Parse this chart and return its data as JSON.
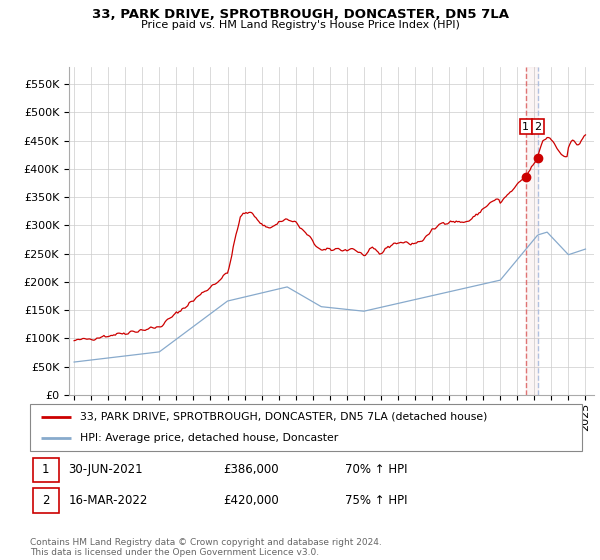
{
  "title": "33, PARK DRIVE, SPROTBROUGH, DONCASTER, DN5 7LA",
  "subtitle": "Price paid vs. HM Land Registry's House Price Index (HPI)",
  "ylabel_ticks": [
    "£0",
    "£50K",
    "£100K",
    "£150K",
    "£200K",
    "£250K",
    "£300K",
    "£350K",
    "£400K",
    "£450K",
    "£500K",
    "£550K"
  ],
  "ytick_vals": [
    0,
    50000,
    100000,
    150000,
    200000,
    250000,
    300000,
    350000,
    400000,
    450000,
    500000,
    550000
  ],
  "ylim": [
    0,
    580000
  ],
  "xlim_start": 1994.7,
  "xlim_end": 2025.5,
  "x_ticks": [
    1995,
    1996,
    1997,
    1998,
    1999,
    2000,
    2001,
    2002,
    2003,
    2004,
    2005,
    2006,
    2007,
    2008,
    2009,
    2010,
    2011,
    2012,
    2013,
    2014,
    2015,
    2016,
    2017,
    2018,
    2019,
    2020,
    2021,
    2022,
    2023,
    2024,
    2025
  ],
  "red_line_color": "#cc0000",
  "blue_line_color": "#88aacc",
  "vline1_color": "#dd6666",
  "vline2_color": "#aabbdd",
  "marker1_x": 2021.5,
  "marker2_x": 2022.2,
  "marker1_price": 386000,
  "marker2_price": 420000,
  "legend_label1": "33, PARK DRIVE, SPROTBROUGH, DONCASTER, DN5 7LA (detached house)",
  "legend_label2": "HPI: Average price, detached house, Doncaster",
  "footer": "Contains HM Land Registry data © Crown copyright and database right 2024.\nThis data is licensed under the Open Government Licence v3.0.",
  "background_color": "#ffffff",
  "grid_color": "#cccccc"
}
